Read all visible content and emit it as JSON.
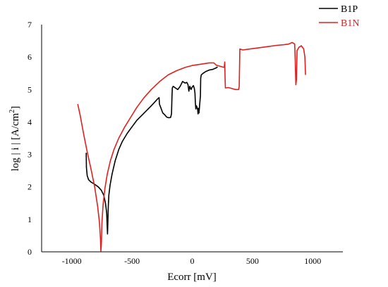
{
  "chart_data": {
    "type": "line",
    "xlabel": "Ecorr [mV]",
    "ylabel_prefix": "log | i | [A/cm",
    "ylabel_sup": "2",
    "ylabel_suffix": "]",
    "xlim": [
      -1250,
      1250
    ],
    "ylim": [
      0,
      7
    ],
    "x_ticks": [
      -1000,
      -500,
      0,
      500,
      1000
    ],
    "y_ticks": [
      0,
      1,
      2,
      3,
      4,
      5,
      6,
      7
    ],
    "grid": false,
    "legend_position": "top-right",
    "series": [
      {
        "name": "B1P",
        "color": "#000000",
        "points": [
          [
            -880,
            3.05
          ],
          [
            -878,
            2.6
          ],
          [
            -872,
            2.35
          ],
          [
            -860,
            2.22
          ],
          [
            -840,
            2.15
          ],
          [
            -810,
            2.08
          ],
          [
            -780,
            2.0
          ],
          [
            -755,
            1.9
          ],
          [
            -735,
            1.75
          ],
          [
            -720,
            1.5
          ],
          [
            -710,
            1.2
          ],
          [
            -703,
            0.55
          ],
          [
            -700,
            0.9
          ],
          [
            -697,
            1.4
          ],
          [
            -692,
            1.75
          ],
          [
            -682,
            2.05
          ],
          [
            -665,
            2.4
          ],
          [
            -640,
            2.8
          ],
          [
            -610,
            3.15
          ],
          [
            -580,
            3.4
          ],
          [
            -540,
            3.65
          ],
          [
            -500,
            3.85
          ],
          [
            -460,
            4.05
          ],
          [
            -420,
            4.2
          ],
          [
            -380,
            4.35
          ],
          [
            -340,
            4.5
          ],
          [
            -310,
            4.62
          ],
          [
            -285,
            4.72
          ],
          [
            -275,
            4.75
          ],
          [
            -272,
            4.55
          ],
          [
            -262,
            4.45
          ],
          [
            -245,
            4.28
          ],
          [
            -228,
            4.22
          ],
          [
            -212,
            4.15
          ],
          [
            -195,
            4.13
          ],
          [
            -180,
            4.14
          ],
          [
            -172,
            4.25
          ],
          [
            -168,
            4.8
          ],
          [
            -165,
            5.05
          ],
          [
            -158,
            5.1
          ],
          [
            -140,
            5.05
          ],
          [
            -120,
            5.0
          ],
          [
            -100,
            5.1
          ],
          [
            -80,
            5.25
          ],
          [
            -60,
            5.2
          ],
          [
            -45,
            5.22
          ],
          [
            -35,
            5.15
          ],
          [
            -28,
            4.95
          ],
          [
            -20,
            5.1
          ],
          [
            -10,
            5.0
          ],
          [
            0,
            5.08
          ],
          [
            10,
            5.12
          ],
          [
            18,
            5.02
          ],
          [
            23,
            4.88
          ],
          [
            26,
            4.6
          ],
          [
            30,
            4.4
          ],
          [
            35,
            4.5
          ],
          [
            40,
            4.45
          ],
          [
            45,
            4.38
          ],
          [
            48,
            4.25
          ],
          [
            52,
            4.42
          ],
          [
            56,
            4.28
          ],
          [
            62,
            4.55
          ],
          [
            68,
            4.8
          ],
          [
            70,
            5.35
          ],
          [
            75,
            5.45
          ],
          [
            90,
            5.5
          ],
          [
            110,
            5.55
          ],
          [
            140,
            5.6
          ],
          [
            170,
            5.62
          ],
          [
            200,
            5.67
          ],
          [
            210,
            5.7
          ]
        ]
      },
      {
        "name": "B1N",
        "color": "#e02020",
        "points": [
          [
            -950,
            4.55
          ],
          [
            -930,
            4.2
          ],
          [
            -900,
            3.6
          ],
          [
            -870,
            3.05
          ],
          [
            -840,
            2.55
          ],
          [
            -810,
            2.0
          ],
          [
            -785,
            1.4
          ],
          [
            -770,
            0.9
          ],
          [
            -762,
            0.4
          ],
          [
            -758,
            0.02
          ],
          [
            -754,
            0.25
          ],
          [
            -750,
            0.85
          ],
          [
            -740,
            1.45
          ],
          [
            -725,
            1.95
          ],
          [
            -705,
            2.4
          ],
          [
            -680,
            2.8
          ],
          [
            -650,
            3.15
          ],
          [
            -610,
            3.5
          ],
          [
            -560,
            3.85
          ],
          [
            -510,
            4.15
          ],
          [
            -460,
            4.45
          ],
          [
            -400,
            4.75
          ],
          [
            -340,
            5.0
          ],
          [
            -270,
            5.25
          ],
          [
            -200,
            5.45
          ],
          [
            -130,
            5.58
          ],
          [
            -60,
            5.68
          ],
          [
            0,
            5.74
          ],
          [
            70,
            5.78
          ],
          [
            140,
            5.82
          ],
          [
            180,
            5.82
          ],
          [
            200,
            5.75
          ],
          [
            230,
            5.72
          ],
          [
            265,
            5.68
          ],
          [
            270,
            5.85
          ],
          [
            272,
            5.4
          ],
          [
            275,
            5.05
          ],
          [
            300,
            5.06
          ],
          [
            320,
            5.04
          ],
          [
            340,
            5.02
          ],
          [
            360,
            5.0
          ],
          [
            385,
            5.0
          ],
          [
            390,
            5.1
          ],
          [
            395,
            6.25
          ],
          [
            420,
            6.22
          ],
          [
            460,
            6.24
          ],
          [
            520,
            6.27
          ],
          [
            580,
            6.3
          ],
          [
            640,
            6.33
          ],
          [
            700,
            6.36
          ],
          [
            760,
            6.38
          ],
          [
            800,
            6.4
          ],
          [
            830,
            6.45
          ],
          [
            850,
            6.4
          ],
          [
            855,
            5.9
          ],
          [
            860,
            5.15
          ],
          [
            865,
            5.3
          ],
          [
            870,
            6.2
          ],
          [
            885,
            6.3
          ],
          [
            905,
            6.35
          ],
          [
            925,
            6.25
          ],
          [
            935,
            6.0
          ],
          [
            940,
            5.45
          ]
        ]
      }
    ]
  }
}
